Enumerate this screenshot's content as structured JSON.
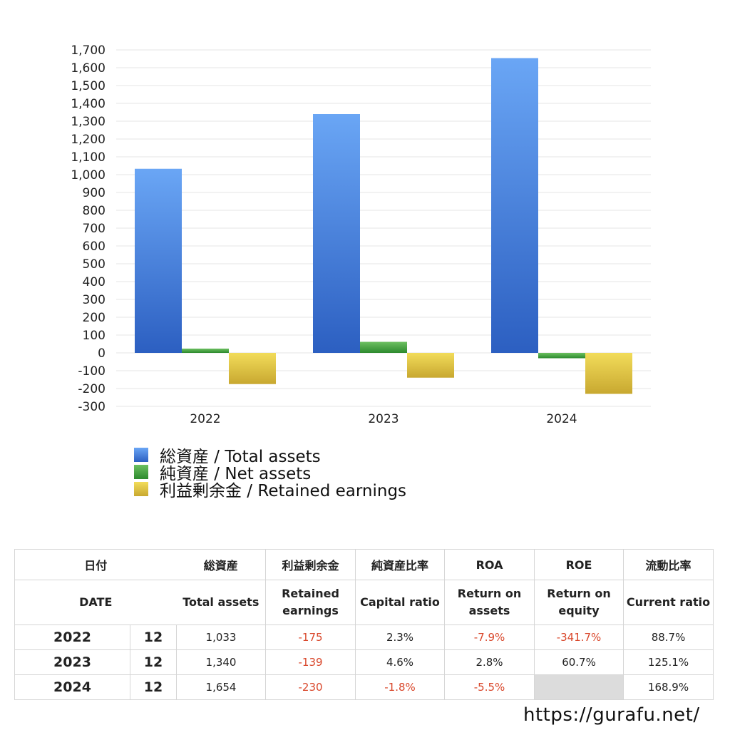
{
  "chart_data": {
    "type": "bar",
    "categories": [
      "2022",
      "2023",
      "2024"
    ],
    "series": [
      {
        "name": "総資産 / Total assets",
        "values": [
          1033,
          1340,
          1654
        ],
        "color": "#3f7fe0"
      },
      {
        "name": "純資産 / Net assets",
        "values": [
          24,
          62,
          -30
        ],
        "color": "#3f9a3a"
      },
      {
        "name": "利益剰余金 / Retained earnings",
        "values": [
          -175,
          -139,
          -230
        ],
        "color": "#e0c242"
      }
    ],
    "yticks": [
      1700,
      1600,
      1500,
      1400,
      1300,
      1200,
      1100,
      1000,
      900,
      800,
      700,
      600,
      500,
      400,
      300,
      200,
      100,
      0,
      -100,
      -200,
      -300
    ],
    "ytick_labels": [
      "1,700",
      "1,600",
      "1,500",
      "1,400",
      "1,300",
      "1,200",
      "1,100",
      "1,000",
      "900",
      "800",
      "700",
      "600",
      "500",
      "400",
      "300",
      "200",
      "100",
      "0",
      "-100",
      "-200",
      "-300"
    ],
    "ylim": [
      -300,
      1700
    ],
    "grid": true,
    "legend_position": "bottom-left"
  },
  "table": {
    "header_jp": [
      "日付",
      "総資産",
      "利益剰余金",
      "純資産比率",
      "ROA",
      "ROE",
      "流動比率"
    ],
    "header_en": [
      "DATE",
      "Total assets",
      "Retained earnings",
      "Capital ratio",
      "Return on assets",
      "Return on equity",
      "Current ratio"
    ],
    "rows": [
      {
        "year": "2022",
        "month": "12",
        "total_assets": "1,033",
        "retained_earnings": "-175",
        "capital_ratio": "2.3%",
        "roa": "-7.9%",
        "roe": "-341.7%",
        "current_ratio": "88.7%"
      },
      {
        "year": "2023",
        "month": "12",
        "total_assets": "1,340",
        "retained_earnings": "-139",
        "capital_ratio": "4.6%",
        "roa": "2.8%",
        "roe": "60.7%",
        "current_ratio": "125.1%"
      },
      {
        "year": "2024",
        "month": "12",
        "total_assets": "1,654",
        "retained_earnings": "-230",
        "capital_ratio": "-1.8%",
        "roa": "-5.5%",
        "roe": "",
        "current_ratio": "168.9%"
      }
    ]
  },
  "footer": {
    "site": "https://gurafu.net/"
  }
}
